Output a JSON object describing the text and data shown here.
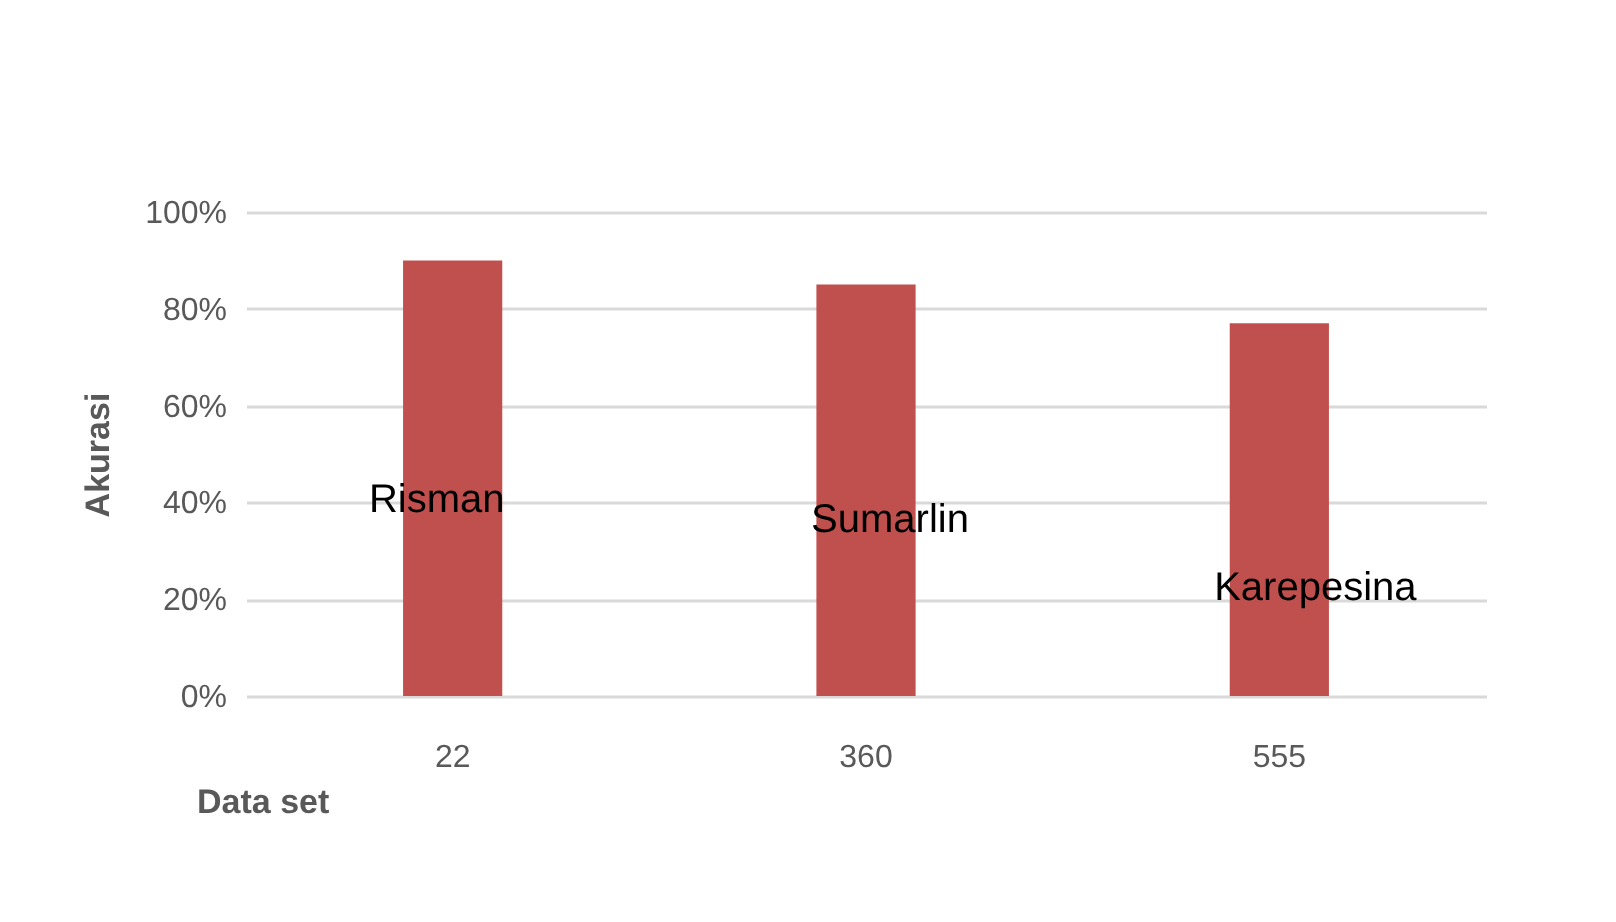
{
  "chart_data": {
    "type": "bar",
    "xlabel": "Data set",
    "ylabel": "Akurasi",
    "categories": [
      "22",
      "360",
      "555"
    ],
    "values": [
      90,
      85,
      77
    ],
    "color": "#c0504d",
    "ylim": [
      0,
      100
    ],
    "yticks": [
      {
        "value": 0,
        "label": "0%"
      },
      {
        "value": 20,
        "label": "20%"
      },
      {
        "value": 40,
        "label": "40%"
      },
      {
        "value": 60,
        "label": "60%"
      },
      {
        "value": 80,
        "label": "80%"
      },
      {
        "value": 100,
        "label": "100%"
      }
    ],
    "grid": "y",
    "annotations": [
      "Risman",
      "Sumarlin",
      "Karepesina"
    ]
  }
}
